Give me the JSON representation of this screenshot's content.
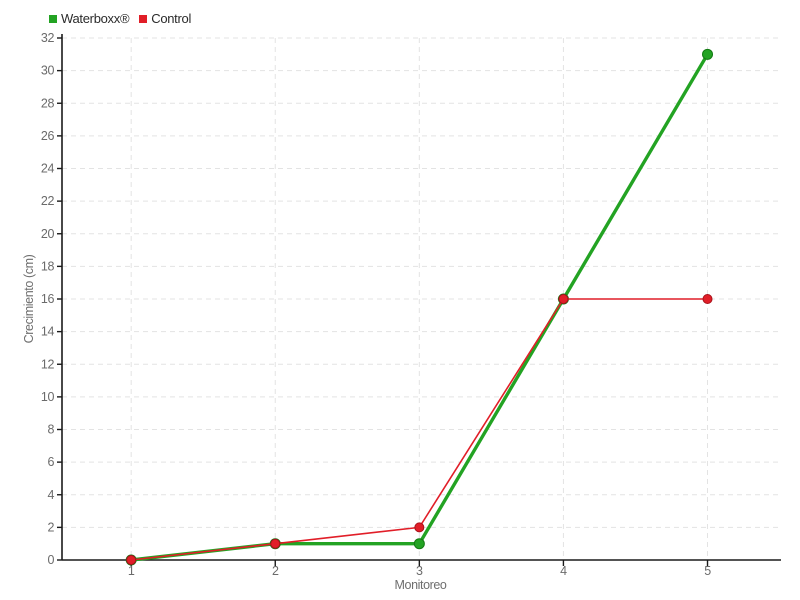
{
  "chart_data": {
    "type": "line",
    "xlabel": "Monitoreo",
    "ylabel": "Crecimiento (cm)",
    "x": [
      1,
      2,
      3,
      4,
      5
    ],
    "x_tick_labels": [
      "1",
      "2",
      "3",
      "4",
      "5"
    ],
    "xlim": [
      0.52,
      5.51
    ],
    "ylim": [
      0,
      32
    ],
    "y_tick_step": 2,
    "grid": "dashed",
    "grid_color": "#e3e3e3",
    "axis_color": "#1a1a1a",
    "legend_position": "top-left",
    "series": [
      {
        "name": "Waterboxx®",
        "color": "#23a323",
        "edge_color": "#127a12",
        "line_width": 3.4,
        "marker_radius": 5,
        "values": [
          0,
          1,
          1,
          16,
          31
        ]
      },
      {
        "name": "Control",
        "color": "#e11e28",
        "edge_color": "#a8121a",
        "line_width": 1.6,
        "marker_radius": 4.5,
        "values": [
          0,
          1,
          2,
          16,
          16
        ]
      }
    ]
  }
}
